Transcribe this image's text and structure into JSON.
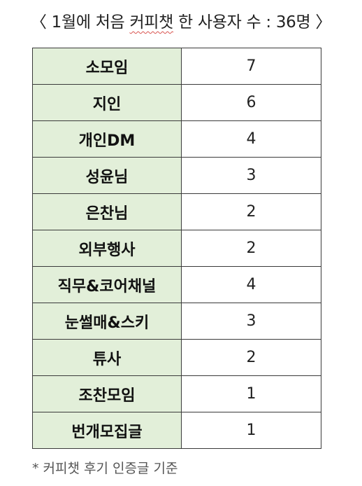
{
  "title": {
    "prefix": "〈 1월에 처음 ",
    "highlight": "커피챗",
    "suffix": " 한 사용자 수 : 36명 〉"
  },
  "rows": [
    {
      "name": "소모임",
      "count": "7"
    },
    {
      "name": "지인",
      "count": "6"
    },
    {
      "name": "개인DM",
      "count": "4"
    },
    {
      "name": "성윤님",
      "count": "3"
    },
    {
      "name": "은찬님",
      "count": "2"
    },
    {
      "name": "외부행사",
      "count": "2"
    },
    {
      "name": "직무&코어채널",
      "count": "4"
    },
    {
      "name": "눈썰매&스키",
      "count": "3"
    },
    {
      "name": "튜사",
      "count": "2"
    },
    {
      "name": "조찬모임",
      "count": "1"
    },
    {
      "name": "번개모집글",
      "count": "1"
    }
  ],
  "footnote": "* 커피챗 후기 인증글 기준",
  "colors": {
    "name_cell_bg": "#e2efd9",
    "border": "#3a3a3a",
    "spellcheck_underline": "#d9534f"
  }
}
